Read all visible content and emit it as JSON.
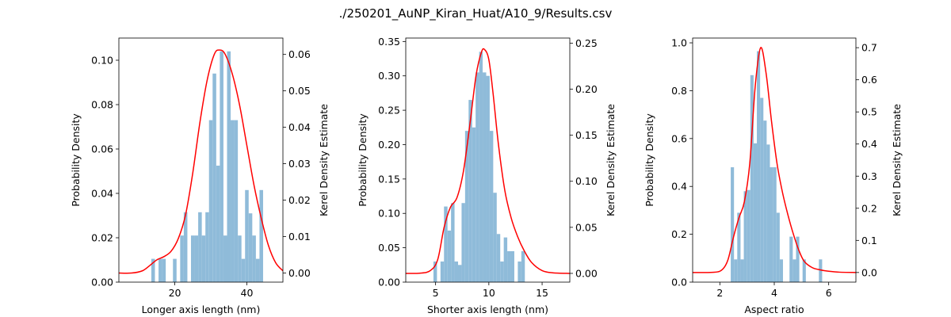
{
  "figure": {
    "suptitle": "./250201_AuNP_Kiran_Huat/A10_9/Results.csv"
  },
  "chart_data": [
    {
      "type": "bar",
      "overlay": "line",
      "xlabel": "Longer axis length (nm)",
      "ylabel": "Probability Density",
      "ylabel_right": "Kerel Density Estimate",
      "xlim": [
        4.5,
        50
      ],
      "ylim": [
        0,
        0.11
      ],
      "ylim_right": [
        -0.0025,
        0.0645
      ],
      "xticks": [
        20,
        40
      ],
      "yticks": [
        0.0,
        0.02,
        0.04,
        0.06,
        0.08,
        0.1
      ],
      "yticks_right": [
        0.0,
        0.01,
        0.02,
        0.03,
        0.04,
        0.05,
        0.06
      ],
      "tick_decimals": 2,
      "bars": {
        "color": "#8fbbd9",
        "left": [
          13.5,
          14.5,
          15.5,
          16.5,
          17.5,
          18.5,
          19.5,
          20.5,
          21.5,
          22.5,
          23.5,
          24.5,
          25.5,
          26.5,
          27.5,
          28.5,
          29.5,
          30.5,
          31.5,
          32.5,
          33.5,
          34.5,
          35.5,
          36.5,
          37.5,
          38.5,
          39.5,
          40.5,
          41.5,
          42.5,
          43.5
        ],
        "width": 1.0,
        "values": [
          0.0105,
          0,
          0.0105,
          0.0105,
          0,
          0,
          0.0105,
          0,
          0.021,
          0.0315,
          0,
          0.021,
          0.021,
          0.0315,
          0.021,
          0.0315,
          0.073,
          0.094,
          0.0525,
          0.104,
          0.021,
          0.104,
          0.073,
          0.073,
          0.021,
          0.0105,
          0.0415,
          0.031,
          0.021,
          0.0105,
          0.0415
        ]
      },
      "kde": {
        "color": "#ff0000",
        "x": [
          4.5,
          8,
          11,
          13,
          15,
          17,
          19,
          21,
          23,
          25,
          27,
          29,
          31,
          32.5,
          34,
          36,
          38,
          40,
          42,
          44,
          46,
          48,
          50
        ],
        "y": [
          0.0,
          0.0,
          0.0006,
          0.002,
          0.0036,
          0.0045,
          0.006,
          0.0095,
          0.016,
          0.0275,
          0.0415,
          0.053,
          0.0601,
          0.0612,
          0.06,
          0.0545,
          0.046,
          0.035,
          0.024,
          0.015,
          0.0075,
          0.0028,
          0.0006
        ]
      }
    },
    {
      "type": "bar",
      "overlay": "line",
      "xlabel": "Shorter axis length (nm)",
      "ylabel": "Probability Density",
      "ylabel_right": "Kerel Density Estimate",
      "xlim": [
        2.2,
        17.6
      ],
      "ylim": [
        0,
        0.355
      ],
      "ylim_right": [
        -0.0095,
        0.2555
      ],
      "xticks": [
        5,
        10,
        15
      ],
      "yticks": [
        0.0,
        0.05,
        0.1,
        0.15,
        0.2,
        0.25,
        0.3,
        0.35
      ],
      "yticks_right": [
        0.0,
        0.05,
        0.1,
        0.15,
        0.2,
        0.25
      ],
      "tick_decimals": 2,
      "bars": {
        "color": "#8fbbd9",
        "left": [
          4.8,
          5.13,
          5.46,
          5.79,
          6.12,
          6.45,
          6.78,
          7.11,
          7.44,
          7.77,
          8.1,
          8.43,
          8.76,
          9.09,
          9.42,
          9.75,
          10.08,
          10.41,
          10.74,
          11.07,
          11.4,
          11.73,
          12.06,
          12.39,
          12.72,
          13.05
        ],
        "width": 0.33,
        "values": [
          0.03,
          0,
          0.03,
          0.11,
          0.075,
          0.115,
          0.03,
          0.025,
          0.115,
          0.22,
          0.265,
          0.225,
          0.305,
          0.335,
          0.305,
          0.3,
          0.22,
          0.13,
          0.07,
          0.03,
          0.065,
          0.045,
          0.045,
          0,
          0.03,
          0.045
        ]
      },
      "kde": {
        "color": "#ff0000",
        "x": [
          2.2,
          3.5,
          4.5,
          5.2,
          5.8,
          6.4,
          7.0,
          7.6,
          8.2,
          8.8,
          9.3,
          9.6,
          10.0,
          10.4,
          10.9,
          11.5,
          12.1,
          12.7,
          13.3,
          14.0,
          15.0,
          16.0,
          17.6
        ],
        "y": [
          0.0,
          0.0002,
          0.003,
          0.015,
          0.05,
          0.072,
          0.082,
          0.11,
          0.16,
          0.215,
          0.24,
          0.243,
          0.232,
          0.195,
          0.14,
          0.09,
          0.06,
          0.04,
          0.025,
          0.012,
          0.003,
          0.0006,
          0.0
        ]
      }
    },
    {
      "type": "bar",
      "overlay": "line",
      "xlabel": "Aspect ratio",
      "ylabel": "Probability Density",
      "ylabel_right": "Kerel Density Estimate",
      "xlim": [
        1.0,
        7.0
      ],
      "ylim": [
        0,
        1.02
      ],
      "ylim_right": [
        -0.03,
        0.73
      ],
      "xticks": [
        2,
        4,
        6
      ],
      "yticks": [
        0.0,
        0.2,
        0.4,
        0.6,
        0.8,
        1.0
      ],
      "yticks_right": [
        0.0,
        0.1,
        0.2,
        0.3,
        0.4,
        0.5,
        0.6,
        0.7
      ],
      "tick_decimals": 1,
      "bars": {
        "color": "#8fbbd9",
        "left": [
          2.4,
          2.52,
          2.64,
          2.76,
          2.88,
          3.0,
          3.12,
          3.24,
          3.36,
          3.48,
          3.6,
          3.72,
          3.84,
          3.96,
          4.08,
          4.2,
          4.32,
          4.44,
          4.56,
          4.68,
          4.8,
          4.92,
          5.04,
          5.16,
          5.28,
          5.4,
          5.52,
          5.64
        ],
        "width": 0.12,
        "values": [
          0.48,
          0.095,
          0.29,
          0.095,
          0.38,
          0.385,
          0.865,
          0.58,
          0.965,
          0.77,
          0.675,
          0.575,
          0.48,
          0.48,
          0.29,
          0.095,
          0.0,
          0.0,
          0.19,
          0.095,
          0.19,
          0.0,
          0.095,
          0.0,
          0.0,
          0.0,
          0.0,
          0.095
        ]
      },
      "kde": {
        "color": "#ff0000",
        "x": [
          1.0,
          1.8,
          2.1,
          2.3,
          2.5,
          2.7,
          2.9,
          3.1,
          3.3,
          3.5,
          3.7,
          3.9,
          4.1,
          4.3,
          4.5,
          4.7,
          4.9,
          5.1,
          5.4,
          5.7,
          6.0,
          6.4,
          7.0
        ],
        "y": [
          0.0,
          0.0008,
          0.01,
          0.04,
          0.11,
          0.17,
          0.22,
          0.34,
          0.58,
          0.7,
          0.62,
          0.47,
          0.34,
          0.25,
          0.18,
          0.12,
          0.07,
          0.035,
          0.015,
          0.008,
          0.004,
          0.001,
          0.0
        ]
      }
    }
  ]
}
